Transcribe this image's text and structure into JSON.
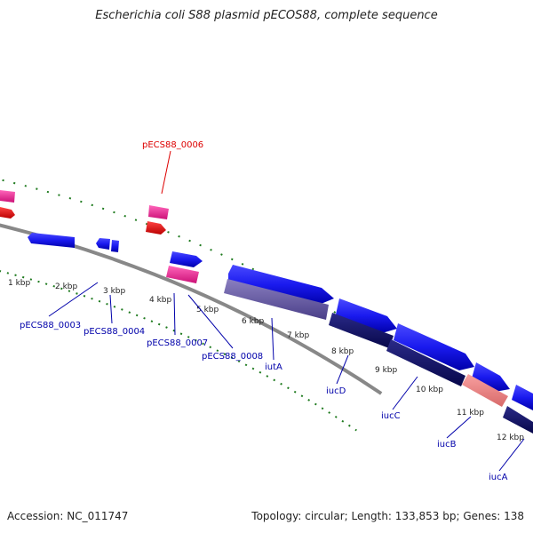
{
  "title": "Escherichia coli S88 plasmid pECOS88, complete sequence",
  "footer": {
    "accession": "Accession: NC_011747",
    "topology": "Topology: circular; Length: 133,853 bp; Genes: 138"
  },
  "ticks": [
    "1 kbp",
    "2 kbp",
    "3 kbp",
    "4 kbp",
    "5 kbp",
    "6 kbp",
    "7 kbp",
    "8 kbp",
    "9 kbp",
    "10 kbp",
    "11 kbp",
    "12 kbp"
  ],
  "genes": [
    {
      "label": "pECS88_0006",
      "color": "#dd0000"
    },
    {
      "label": "pECS88_0003",
      "color": "#0000aa"
    },
    {
      "label": "pECS88_0004",
      "color": "#0000aa"
    },
    {
      "label": "pECS88_0007",
      "color": "#0000aa"
    },
    {
      "label": "pECS88_0008",
      "color": "#0000aa"
    },
    {
      "label": "iutA",
      "color": "#0000aa"
    },
    {
      "label": "iucD",
      "color": "#0000aa"
    },
    {
      "label": "iucC",
      "color": "#0000aa"
    },
    {
      "label": "iucB",
      "color": "#0000aa"
    },
    {
      "label": "iucA",
      "color": "#0000aa"
    }
  ],
  "colors": {
    "cds_forward": "#1a1aee",
    "cds_reverse": "#dd1111",
    "pink_feature": "#ee3399",
    "navy_feature": "#111166",
    "backbone": "#888888",
    "tick_green": "#1e7a1e"
  }
}
